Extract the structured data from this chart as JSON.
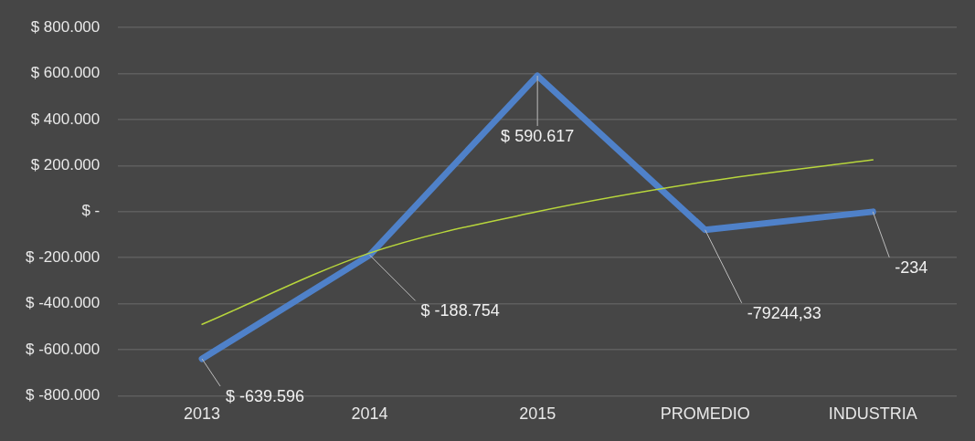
{
  "chart_data": {
    "type": "line",
    "categories": [
      "2013",
      "2014",
      "2015",
      "PROMEDIO",
      "INDUSTRIA"
    ],
    "series": [
      {
        "color": "#4f81c9",
        "values": [
          -639596,
          -188754,
          590617,
          -79244.33,
          -234
        ],
        "value_labels": [
          "$ -639.596",
          "$ -188.754",
          "$ 590.617",
          "-79244,33",
          "-234"
        ]
      },
      {
        "type": "line",
        "color": "#b8d63c",
        "values": [
          -490000,
          -180000,
          0,
          130000,
          225000
        ]
      }
    ],
    "ylim": [
      -800000,
      800000
    ],
    "yticks": [
      {
        "value": -800000,
        "label": "$ -800.000"
      },
      {
        "value": -600000,
        "label": "$ -600.000"
      },
      {
        "value": -400000,
        "label": "$ -400.000"
      },
      {
        "value": -200000,
        "label": "$ -200.000"
      },
      {
        "value": 0,
        "label": "$ -"
      },
      {
        "value": 200000,
        "label": "$ 200.000"
      },
      {
        "value": 400000,
        "label": "$ 400.000"
      },
      {
        "value": 600000,
        "label": "$ 600.000"
      },
      {
        "value": 800000,
        "label": "$ 800.000"
      }
    ],
    "grid": "y",
    "legend": false,
    "marker": "none",
    "line_style": "solid"
  }
}
